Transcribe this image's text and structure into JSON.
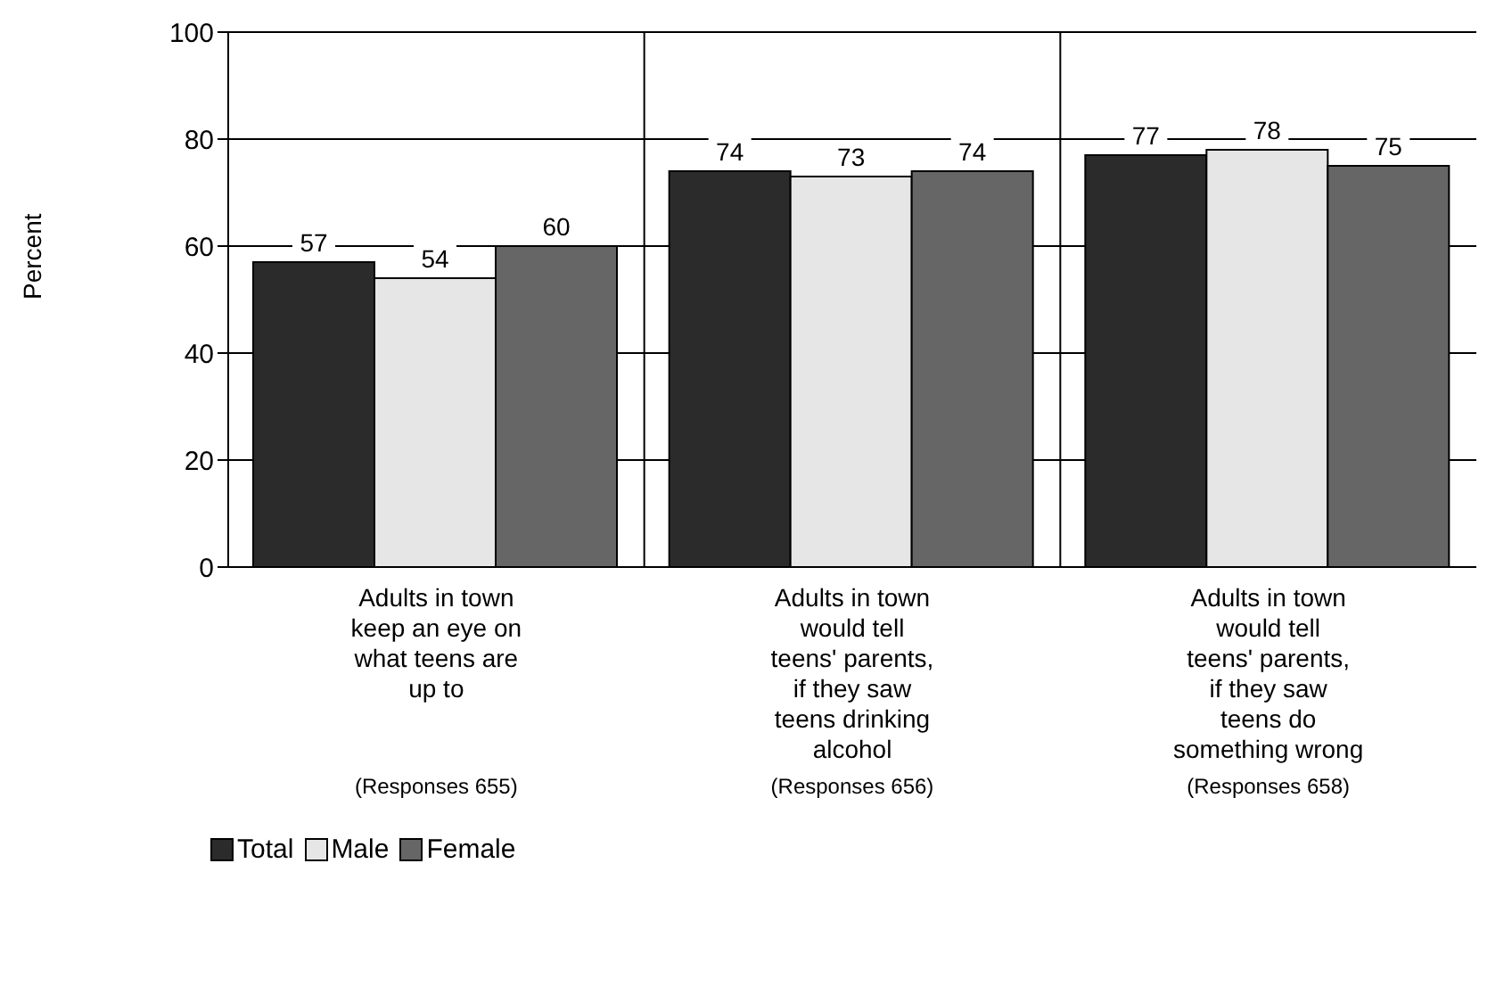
{
  "chart_data": {
    "type": "bar",
    "ylabel": "Percent",
    "categories": [
      "Adults in town keep an eye on what teens are up to",
      "Adults in town would tell teens' parents, if they saw teens drinking alcohol",
      "Adults in town would tell teens' parents, if they saw teens do something wrong"
    ],
    "series": [
      {
        "name": "Total",
        "color": "#2b2b2b",
        "values": [
          57,
          74,
          77
        ]
      },
      {
        "name": "Male",
        "color": "#e6e6e6",
        "values": [
          54,
          73,
          78
        ]
      },
      {
        "name": "Female",
        "color": "#666666",
        "values": [
          60,
          74,
          75
        ]
      }
    ],
    "ylim": [
      0,
      100
    ],
    "yticks": [
      0,
      20,
      40,
      60,
      80,
      100
    ],
    "grid": true,
    "data_labels": true,
    "legend": "bottom left",
    "annotations": [
      "(Responses 655)",
      "(Responses 656)",
      "(Responses 658)"
    ]
  }
}
